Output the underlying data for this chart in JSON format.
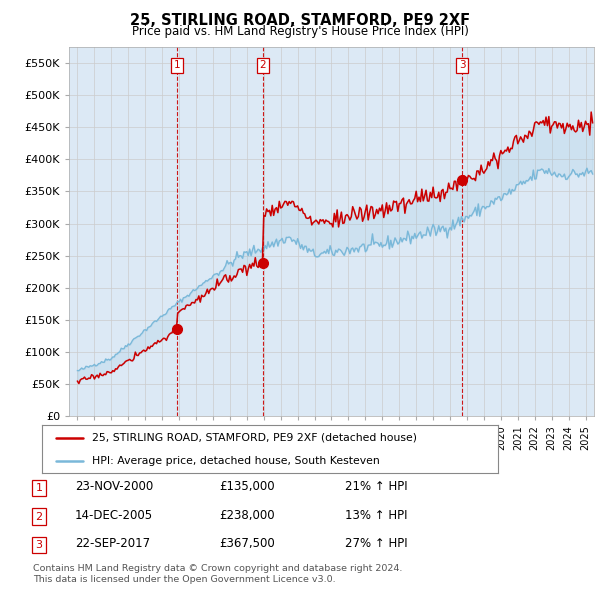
{
  "title": "25, STIRLING ROAD, STAMFORD, PE9 2XF",
  "subtitle": "Price paid vs. HM Land Registry's House Price Index (HPI)",
  "ylabel_ticks": [
    "£0",
    "£50K",
    "£100K",
    "£150K",
    "£200K",
    "£250K",
    "£300K",
    "£350K",
    "£400K",
    "£450K",
    "£500K",
    "£550K"
  ],
  "ylim": [
    0,
    575000
  ],
  "ytick_vals": [
    0,
    50000,
    100000,
    150000,
    200000,
    250000,
    300000,
    350000,
    400000,
    450000,
    500000,
    550000
  ],
  "xlim_start": 1994.5,
  "xlim_end": 2025.5,
  "sale_dates": [
    2000.9,
    2005.95,
    2017.72
  ],
  "sale_prices": [
    135000,
    238000,
    367500
  ],
  "sale_labels": [
    "1",
    "2",
    "3"
  ],
  "hpi_color": "#7ab8d9",
  "price_color": "#cc0000",
  "vline_color": "#cc0000",
  "grid_color": "#cccccc",
  "background_color": "#ffffff",
  "plot_bg_color": "#dce9f5",
  "legend_entries": [
    "25, STIRLING ROAD, STAMFORD, PE9 2XF (detached house)",
    "HPI: Average price, detached house, South Kesteven"
  ],
  "table_rows": [
    [
      "1",
      "23-NOV-2000",
      "£135,000",
      "21% ↑ HPI"
    ],
    [
      "2",
      "14-DEC-2005",
      "£238,000",
      "13% ↑ HPI"
    ],
    [
      "3",
      "22-SEP-2017",
      "£367,500",
      "27% ↑ HPI"
    ]
  ],
  "footnote1": "Contains HM Land Registry data © Crown copyright and database right 2024.",
  "footnote2": "This data is licensed under the Open Government Licence v3.0."
}
